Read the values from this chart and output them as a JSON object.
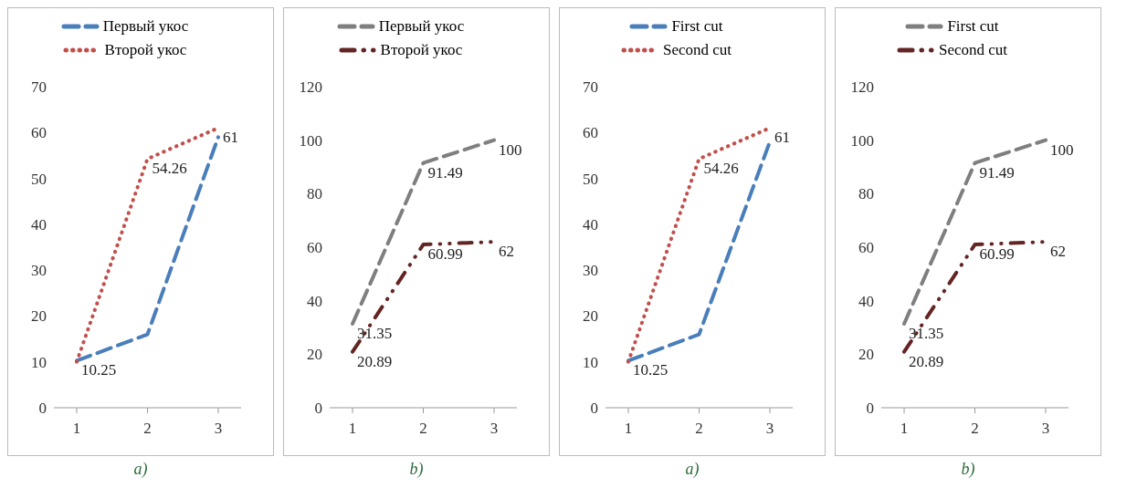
{
  "chart_data": [
    {
      "type": "line",
      "categories": [
        "1",
        "2",
        "3"
      ],
      "xlabel": "a)",
      "ylim": [
        0,
        70
      ],
      "yticks": [
        0,
        10,
        20,
        30,
        40,
        50,
        60,
        70
      ],
      "grid": false,
      "legend": "top",
      "marker": "none",
      "series": [
        {
          "name": "Первый укос",
          "color": "#4a7ebb",
          "values": [
            10.25,
            16,
            59
          ],
          "value_labels": [
            "10.25",
            null,
            null
          ],
          "line_style": "dashed"
        },
        {
          "name": "Второй укос",
          "color": "#c0504d",
          "values": [
            10,
            54.26,
            61
          ],
          "value_labels": [
            null,
            "54.26",
            "61"
          ],
          "line_style": "dotted"
        }
      ]
    },
    {
      "type": "line",
      "categories": [
        "1",
        "2",
        "3"
      ],
      "xlabel": "b)",
      "ylim": [
        0,
        120
      ],
      "yticks": [
        0,
        20,
        40,
        60,
        80,
        100,
        120
      ],
      "grid": false,
      "legend": "top",
      "marker": "none",
      "series": [
        {
          "name": "Первый укос",
          "color": "#7f7f7f",
          "values": [
            31.35,
            91.49,
            100
          ],
          "value_labels": [
            "31.35",
            "91.49",
            "100"
          ],
          "line_style": "dashed"
        },
        {
          "name": "Второй укос",
          "color": "#632523",
          "values": [
            20.89,
            60.99,
            62
          ],
          "value_labels": [
            "20.89",
            "60.99",
            "62"
          ],
          "line_style": "dashdot"
        }
      ]
    },
    {
      "type": "line",
      "categories": [
        "1",
        "2",
        "3"
      ],
      "xlabel": "a)",
      "ylim": [
        0,
        70
      ],
      "yticks": [
        0,
        10,
        20,
        30,
        40,
        50,
        60,
        70
      ],
      "grid": false,
      "legend": "top",
      "marker": "none",
      "series": [
        {
          "name": "First cut",
          "color": "#4a7ebb",
          "values": [
            10.25,
            16,
            58
          ],
          "value_labels": [
            "10.25",
            null,
            null
          ],
          "line_style": "dashed"
        },
        {
          "name": "Second cut",
          "color": "#c0504d",
          "values": [
            10,
            54.26,
            61
          ],
          "value_labels": [
            null,
            "54.26",
            "61"
          ],
          "line_style": "dotted"
        }
      ]
    },
    {
      "type": "line",
      "categories": [
        "1",
        "2",
        "3"
      ],
      "xlabel": "b)",
      "ylim": [
        0,
        120
      ],
      "yticks": [
        0,
        20,
        40,
        60,
        80,
        100,
        120
      ],
      "grid": false,
      "legend": "top",
      "marker": "none",
      "series": [
        {
          "name": "First cut",
          "color": "#7f7f7f",
          "values": [
            31.35,
            91.49,
            100
          ],
          "value_labels": [
            "31.35",
            "91.49",
            "100"
          ],
          "line_style": "dashed"
        },
        {
          "name": "Second cut",
          "color": "#632523",
          "values": [
            20.89,
            60.99,
            62
          ],
          "value_labels": [
            "20.89",
            "60.99",
            "62"
          ],
          "line_style": "dashdot"
        }
      ]
    }
  ]
}
